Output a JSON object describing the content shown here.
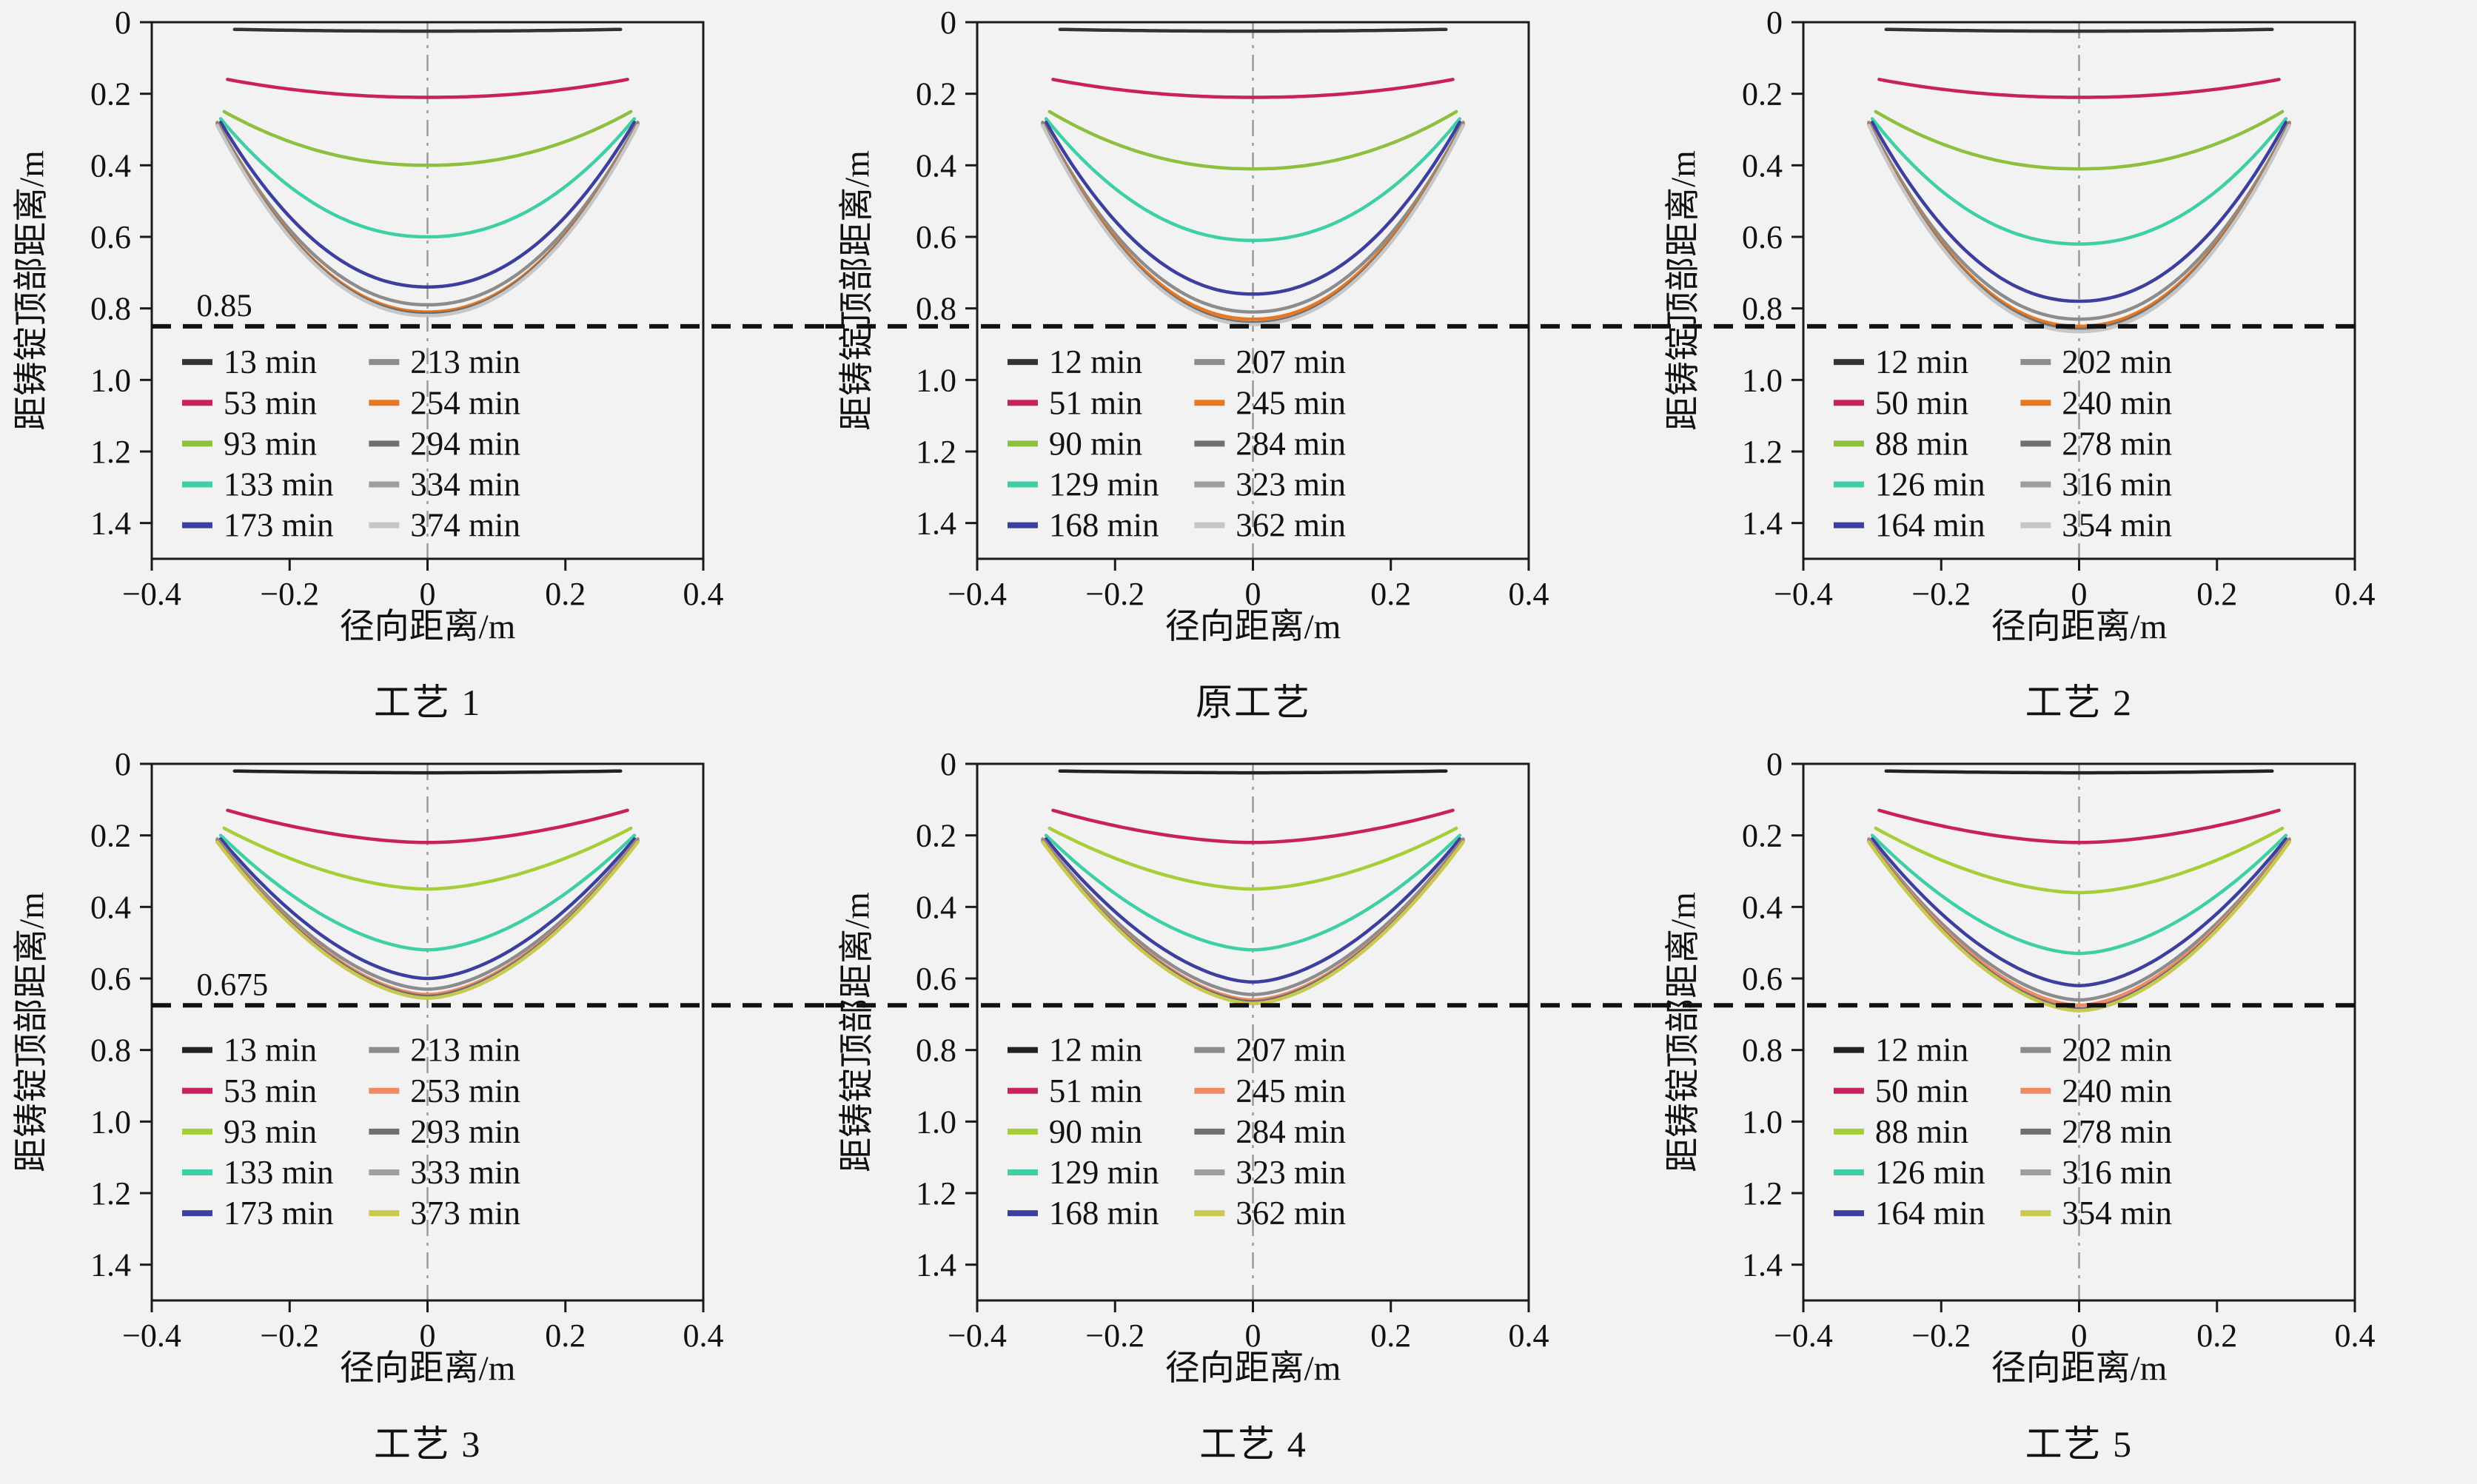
{
  "page": {
    "background": "#f2f2f2"
  },
  "axes": {
    "xlabel": "径向距离/m",
    "ylabel": "距铸锭顶部距离/m",
    "xlim": [
      -0.4,
      0.4
    ],
    "ylim": [
      0,
      1.5
    ],
    "xticks": [
      -0.4,
      -0.2,
      0,
      0.2,
      0.4
    ],
    "xtick_labels": [
      "−0.4",
      "−0.2",
      "0",
      "0.2",
      "0.4"
    ],
    "yticks": [
      0,
      0.2,
      0.4,
      0.6,
      0.8,
      1.0,
      1.2,
      1.4
    ],
    "ytick_labels": [
      "0",
      "0.2",
      "0.4",
      "0.6",
      "0.8",
      "1.0",
      "1.2",
      "1.4"
    ],
    "grid": false,
    "legend_position": "inside-lower-left",
    "colors": {
      "axis": "#1a1a1a",
      "reference_line": "#111111",
      "center_line": "#9a9a9a",
      "text": "#111111"
    }
  },
  "chart_data": [
    {
      "type": "line",
      "title": "工艺 1",
      "xlabel": "径向距离/m",
      "ylabel": "距铸锭顶部距离/m",
      "reference_line": 0.85,
      "reference_label": "0.85",
      "legend_y_start": 0.95,
      "legend_y_step": 0.114,
      "curve_power": 2.1,
      "series": [
        {
          "name": "13 min",
          "color": "#333333",
          "r": 0.28,
          "edge": 0.02,
          "center": 0.025
        },
        {
          "name": "53 min",
          "color": "#c9205f",
          "r": 0.29,
          "edge": 0.16,
          "center": 0.21
        },
        {
          "name": "93 min",
          "color": "#8fbf3f",
          "r": 0.295,
          "edge": 0.25,
          "center": 0.4
        },
        {
          "name": "133 min",
          "color": "#3fcfa7",
          "r": 0.3,
          "edge": 0.27,
          "center": 0.6
        },
        {
          "name": "173 min",
          "color": "#3c3f9e",
          "r": 0.3,
          "edge": 0.28,
          "center": 0.74
        },
        {
          "name": "213 min",
          "color": "#8c8c8c",
          "r": 0.305,
          "edge": 0.28,
          "center": 0.79
        },
        {
          "name": "254 min",
          "color": "#e87722",
          "r": 0.305,
          "edge": 0.283,
          "center": 0.81
        },
        {
          "name": "294 min",
          "color": "#6f6f6f",
          "r": 0.305,
          "edge": 0.285,
          "center": 0.815
        },
        {
          "name": "334 min",
          "color": "#9e9e9e",
          "r": 0.305,
          "edge": 0.287,
          "center": 0.82
        },
        {
          "name": "374 min",
          "color": "#c6c6c6",
          "r": 0.305,
          "edge": 0.289,
          "center": 0.82
        }
      ]
    },
    {
      "type": "line",
      "title": "原工艺",
      "xlabel": "径向距离/m",
      "ylabel": "距铸锭顶部距离/m",
      "reference_line": 0.85,
      "reference_label": "",
      "legend_y_start": 0.95,
      "legend_y_step": 0.114,
      "curve_power": 2.1,
      "series": [
        {
          "name": "12 min",
          "color": "#333333",
          "r": 0.28,
          "edge": 0.02,
          "center": 0.025
        },
        {
          "name": "51 min",
          "color": "#c9205f",
          "r": 0.29,
          "edge": 0.16,
          "center": 0.21
        },
        {
          "name": "90 min",
          "color": "#8fbf3f",
          "r": 0.295,
          "edge": 0.25,
          "center": 0.41
        },
        {
          "name": "129 min",
          "color": "#3fcfa7",
          "r": 0.3,
          "edge": 0.27,
          "center": 0.61
        },
        {
          "name": "168 min",
          "color": "#3c3f9e",
          "r": 0.3,
          "edge": 0.28,
          "center": 0.76
        },
        {
          "name": "207 min",
          "color": "#8c8c8c",
          "r": 0.305,
          "edge": 0.28,
          "center": 0.81
        },
        {
          "name": "245 min",
          "color": "#e87722",
          "r": 0.305,
          "edge": 0.283,
          "center": 0.83
        },
        {
          "name": "284 min",
          "color": "#6f6f6f",
          "r": 0.305,
          "edge": 0.285,
          "center": 0.84
        },
        {
          "name": "323 min",
          "color": "#9e9e9e",
          "r": 0.305,
          "edge": 0.287,
          "center": 0.845
        },
        {
          "name": "362 min",
          "color": "#c6c6c6",
          "r": 0.305,
          "edge": 0.289,
          "center": 0.845
        }
      ]
    },
    {
      "type": "line",
      "title": "工艺 2",
      "xlabel": "径向距离/m",
      "ylabel": "距铸锭顶部距离/m",
      "reference_line": 0.85,
      "reference_label": "",
      "legend_y_start": 0.95,
      "legend_y_step": 0.114,
      "curve_power": 2.1,
      "series": [
        {
          "name": "12 min",
          "color": "#333333",
          "r": 0.28,
          "edge": 0.02,
          "center": 0.025
        },
        {
          "name": "50 min",
          "color": "#c9205f",
          "r": 0.29,
          "edge": 0.16,
          "center": 0.21
        },
        {
          "name": "88 min",
          "color": "#8fbf3f",
          "r": 0.295,
          "edge": 0.25,
          "center": 0.41
        },
        {
          "name": "126 min",
          "color": "#3fcfa7",
          "r": 0.3,
          "edge": 0.27,
          "center": 0.62
        },
        {
          "name": "164 min",
          "color": "#3c3f9e",
          "r": 0.3,
          "edge": 0.28,
          "center": 0.78
        },
        {
          "name": "202 min",
          "color": "#8c8c8c",
          "r": 0.305,
          "edge": 0.28,
          "center": 0.83
        },
        {
          "name": "240 min",
          "color": "#e87722",
          "r": 0.305,
          "edge": 0.283,
          "center": 0.85
        },
        {
          "name": "278 min",
          "color": "#6f6f6f",
          "r": 0.305,
          "edge": 0.285,
          "center": 0.858
        },
        {
          "name": "316 min",
          "color": "#9e9e9e",
          "r": 0.305,
          "edge": 0.287,
          "center": 0.863
        },
        {
          "name": "354 min",
          "color": "#c6c6c6",
          "r": 0.305,
          "edge": 0.289,
          "center": 0.865
        }
      ]
    },
    {
      "type": "line",
      "title": "工艺 3",
      "xlabel": "径向距离/m",
      "ylabel": "距铸锭顶部距离/m",
      "reference_line": 0.675,
      "reference_label": "0.675",
      "legend_y_start": 0.8,
      "legend_y_step": 0.114,
      "curve_power": 1.75,
      "series": [
        {
          "name": "13 min",
          "color": "#222222",
          "r": 0.28,
          "edge": 0.02,
          "center": 0.025
        },
        {
          "name": "53 min",
          "color": "#c9205f",
          "r": 0.29,
          "edge": 0.13,
          "center": 0.22
        },
        {
          "name": "93 min",
          "color": "#a6ce39",
          "r": 0.295,
          "edge": 0.18,
          "center": 0.35
        },
        {
          "name": "133 min",
          "color": "#3fcfa7",
          "r": 0.3,
          "edge": 0.2,
          "center": 0.52
        },
        {
          "name": "173 min",
          "color": "#3c3f9e",
          "r": 0.3,
          "edge": 0.21,
          "center": 0.6
        },
        {
          "name": "213 min",
          "color": "#8c8c8c",
          "r": 0.305,
          "edge": 0.21,
          "center": 0.63
        },
        {
          "name": "253 min",
          "color": "#ef8a62",
          "r": 0.305,
          "edge": 0.213,
          "center": 0.645
        },
        {
          "name": "293 min",
          "color": "#6f6f6f",
          "r": 0.305,
          "edge": 0.215,
          "center": 0.65
        },
        {
          "name": "333 min",
          "color": "#9e9e9e",
          "r": 0.305,
          "edge": 0.217,
          "center": 0.655
        },
        {
          "name": "373 min",
          "color": "#c9c94f",
          "r": 0.305,
          "edge": 0.219,
          "center": 0.655
        }
      ]
    },
    {
      "type": "line",
      "title": "工艺 4",
      "xlabel": "径向距离/m",
      "ylabel": "距铸锭顶部距离/m",
      "reference_line": 0.675,
      "reference_label": "",
      "legend_y_start": 0.8,
      "legend_y_step": 0.114,
      "curve_power": 1.75,
      "series": [
        {
          "name": "12 min",
          "color": "#222222",
          "r": 0.28,
          "edge": 0.02,
          "center": 0.025
        },
        {
          "name": "51 min",
          "color": "#c9205f",
          "r": 0.29,
          "edge": 0.13,
          "center": 0.22
        },
        {
          "name": "90 min",
          "color": "#a6ce39",
          "r": 0.295,
          "edge": 0.18,
          "center": 0.35
        },
        {
          "name": "129 min",
          "color": "#3fcfa7",
          "r": 0.3,
          "edge": 0.2,
          "center": 0.52
        },
        {
          "name": "168 min",
          "color": "#3c3f9e",
          "r": 0.3,
          "edge": 0.21,
          "center": 0.61
        },
        {
          "name": "207 min",
          "color": "#8c8c8c",
          "r": 0.305,
          "edge": 0.21,
          "center": 0.645
        },
        {
          "name": "245 min",
          "color": "#ef8a62",
          "r": 0.305,
          "edge": 0.213,
          "center": 0.66
        },
        {
          "name": "284 min",
          "color": "#6f6f6f",
          "r": 0.305,
          "edge": 0.215,
          "center": 0.665
        },
        {
          "name": "323 min",
          "color": "#9e9e9e",
          "r": 0.305,
          "edge": 0.217,
          "center": 0.67
        },
        {
          "name": "362 min",
          "color": "#c9c94f",
          "r": 0.305,
          "edge": 0.219,
          "center": 0.67
        }
      ]
    },
    {
      "type": "line",
      "title": "工艺 5",
      "xlabel": "径向距离/m",
      "ylabel": "距铸锭顶部距离/m",
      "reference_line": 0.675,
      "reference_label": "",
      "legend_y_start": 0.8,
      "legend_y_step": 0.114,
      "curve_power": 1.75,
      "series": [
        {
          "name": "12 min",
          "color": "#222222",
          "r": 0.28,
          "edge": 0.02,
          "center": 0.025
        },
        {
          "name": "50 min",
          "color": "#c9205f",
          "r": 0.29,
          "edge": 0.13,
          "center": 0.22
        },
        {
          "name": "88 min",
          "color": "#a6ce39",
          "r": 0.295,
          "edge": 0.18,
          "center": 0.36
        },
        {
          "name": "126 min",
          "color": "#3fcfa7",
          "r": 0.3,
          "edge": 0.2,
          "center": 0.53
        },
        {
          "name": "164 min",
          "color": "#3c3f9e",
          "r": 0.3,
          "edge": 0.21,
          "center": 0.62
        },
        {
          "name": "202 min",
          "color": "#8c8c8c",
          "r": 0.305,
          "edge": 0.21,
          "center": 0.66
        },
        {
          "name": "240 min",
          "color": "#ef8a62",
          "r": 0.305,
          "edge": 0.213,
          "center": 0.675
        },
        {
          "name": "278 min",
          "color": "#6f6f6f",
          "r": 0.305,
          "edge": 0.215,
          "center": 0.685
        },
        {
          "name": "316 min",
          "color": "#9e9e9e",
          "r": 0.305,
          "edge": 0.217,
          "center": 0.69
        },
        {
          "name": "354 min",
          "color": "#c9c94f",
          "r": 0.305,
          "edge": 0.219,
          "center": 0.69
        }
      ]
    }
  ]
}
